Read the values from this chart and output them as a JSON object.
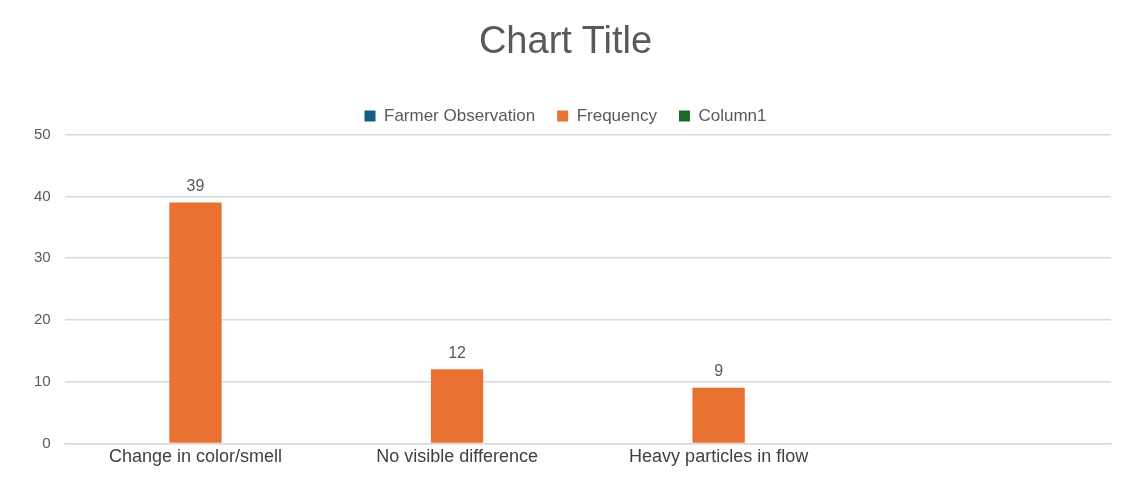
{
  "chart_data": {
    "type": "bar",
    "title": "Chart Title",
    "categories": [
      "Change in color/smell",
      "No visible difference",
      "Heavy particles in flow",
      null
    ],
    "series": [
      {
        "name": "Farmer Observation",
        "color": "#156082",
        "values": [
          null,
          null,
          null,
          null
        ]
      },
      {
        "name": "Frequency",
        "color": "#e97132",
        "values": [
          39,
          12,
          9,
          null
        ]
      },
      {
        "name": "Column1",
        "color": "#196b24",
        "values": [
          null,
          null,
          null,
          null
        ]
      }
    ],
    "ylim": [
      0,
      50
    ],
    "yticks": [
      0,
      10,
      20,
      30,
      40,
      50
    ],
    "grid": "y",
    "legend": "top",
    "data_labels": true
  }
}
